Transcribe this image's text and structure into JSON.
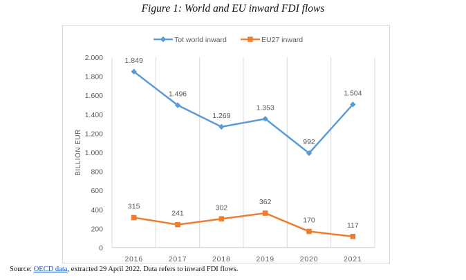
{
  "figure_title": "Figure 1: World and EU inward FDI flows",
  "source": {
    "prefix": "Source: ",
    "link_text": "OECD data",
    "suffix": ", extracted 29 April 2022. Data refers to inward FDI flows."
  },
  "chart_data": {
    "type": "line",
    "title": "",
    "xlabel": "",
    "ylabel": "BILLION EUR",
    "x": [
      "2016",
      "2017",
      "2018",
      "2019",
      "2020",
      "2021"
    ],
    "ylim": [
      0,
      2000
    ],
    "y_ticks": [
      0,
      200,
      400,
      600,
      800,
      1000,
      1200,
      1400,
      1600,
      1800,
      2000
    ],
    "y_tick_labels": [
      "0",
      "200",
      "400",
      "600",
      "800",
      "1.000",
      "1.200",
      "1.400",
      "1.600",
      "1.800",
      "2.000"
    ],
    "legend_position": "top-center",
    "grid": "vertical",
    "series": [
      {
        "name": "Tot world inward",
        "color": "#5b9bd5",
        "marker": "diamond",
        "values": [
          1849,
          1496,
          1269,
          1353,
          992,
          1504
        ],
        "labels": [
          "1.849",
          "1.496",
          "1.269",
          "1.353",
          "992",
          "1.504"
        ]
      },
      {
        "name": "EU27 inward",
        "color": "#ed7d31",
        "marker": "square",
        "values": [
          315,
          241,
          302,
          362,
          170,
          117
        ],
        "labels": [
          "315",
          "241",
          "302",
          "362",
          "170",
          "117"
        ]
      }
    ]
  }
}
